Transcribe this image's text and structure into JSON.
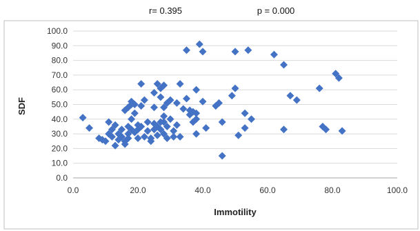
{
  "stats": {
    "r_label": "r= 0.395",
    "p_label": "p = 0.000"
  },
  "chart_data": {
    "type": "scatter",
    "xlabel": "Immotility",
    "ylabel": "SDF",
    "xlim": [
      0,
      100
    ],
    "ylim": [
      0,
      100
    ],
    "xticks": [
      "0.0",
      "20.0",
      "40.0",
      "60.0",
      "80.0",
      "100.0"
    ],
    "yticks": [
      "0.0",
      "10.0",
      "20.0",
      "30.0",
      "40.0",
      "50.0",
      "60.0",
      "70.0",
      "80.0",
      "90.0",
      "100.0"
    ],
    "grid": "horizontal",
    "marker_color": "#4472C4",
    "marker": "diamond",
    "points": [
      [
        3,
        41
      ],
      [
        5,
        34
      ],
      [
        8,
        27
      ],
      [
        9,
        26
      ],
      [
        10,
        25
      ],
      [
        11,
        38
      ],
      [
        11,
        30
      ],
      [
        12,
        33
      ],
      [
        12,
        28
      ],
      [
        13,
        36
      ],
      [
        13,
        22
      ],
      [
        14,
        30
      ],
      [
        14,
        26
      ],
      [
        15,
        33
      ],
      [
        15,
        28
      ],
      [
        16,
        25
      ],
      [
        16,
        23
      ],
      [
        16,
        46
      ],
      [
        17,
        35
      ],
      [
        17,
        30
      ],
      [
        17,
        48
      ],
      [
        17,
        27
      ],
      [
        18,
        50
      ],
      [
        18,
        52
      ],
      [
        18,
        40
      ],
      [
        18,
        33
      ],
      [
        19,
        44
      ],
      [
        19,
        31
      ],
      [
        19,
        50
      ],
      [
        20,
        36
      ],
      [
        20,
        33
      ],
      [
        20,
        27
      ],
      [
        21,
        64
      ],
      [
        21,
        49
      ],
      [
        21,
        35
      ],
      [
        22,
        53
      ],
      [
        22,
        28
      ],
      [
        23,
        38
      ],
      [
        23,
        32
      ],
      [
        24,
        27
      ],
      [
        24,
        25
      ],
      [
        25,
        37
      ],
      [
        25,
        33
      ],
      [
        25,
        48
      ],
      [
        25,
        58
      ],
      [
        26,
        64
      ],
      [
        26,
        35
      ],
      [
        26,
        29
      ],
      [
        27,
        38
      ],
      [
        27,
        33
      ],
      [
        27,
        55
      ],
      [
        27,
        61
      ],
      [
        28,
        48
      ],
      [
        28,
        63
      ],
      [
        28,
        30
      ],
      [
        28,
        42
      ],
      [
        28,
        38
      ],
      [
        29,
        35
      ],
      [
        29,
        27
      ],
      [
        29,
        51
      ],
      [
        30,
        53
      ],
      [
        30,
        40
      ],
      [
        31,
        32
      ],
      [
        31,
        28
      ],
      [
        32,
        36
      ],
      [
        32,
        51
      ],
      [
        33,
        64
      ],
      [
        33,
        28
      ],
      [
        34,
        47
      ],
      [
        35,
        54
      ],
      [
        35,
        87
      ],
      [
        36,
        43
      ],
      [
        36,
        46
      ],
      [
        37,
        45
      ],
      [
        37,
        38
      ],
      [
        38,
        60
      ],
      [
        38,
        44
      ],
      [
        38,
        40
      ],
      [
        38,
        30
      ],
      [
        39,
        91
      ],
      [
        40,
        86
      ],
      [
        40,
        52
      ],
      [
        41,
        34
      ],
      [
        44,
        49
      ],
      [
        45,
        51
      ],
      [
        46,
        38
      ],
      [
        46,
        15
      ],
      [
        49,
        56
      ],
      [
        50,
        86
      ],
      [
        50,
        61
      ],
      [
        51,
        29
      ],
      [
        53,
        44
      ],
      [
        53,
        34
      ],
      [
        54,
        87
      ],
      [
        55,
        40
      ],
      [
        62,
        84
      ],
      [
        65,
        77
      ],
      [
        65,
        33
      ],
      [
        67,
        56
      ],
      [
        69,
        53
      ],
      [
        76,
        61
      ],
      [
        77,
        35
      ],
      [
        78,
        33
      ],
      [
        81,
        71
      ],
      [
        82,
        68
      ],
      [
        83,
        32
      ]
    ]
  }
}
